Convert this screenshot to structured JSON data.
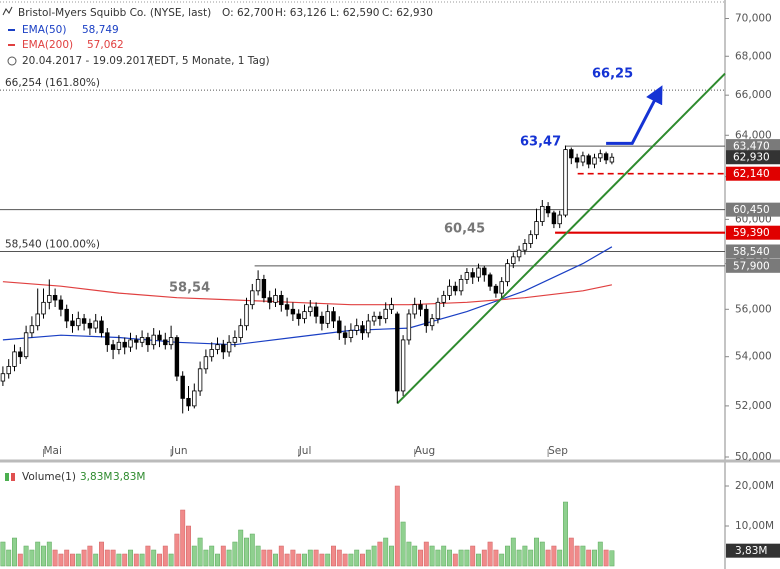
{
  "chart_data": [
    {
      "type": "candlestick",
      "title": "Bristol-Myers Squibb Co. (NYSE, last)",
      "ohlc_summary": [
        "O: 62,700",
        "H: 63,126",
        "L: 62,590",
        "C: 62,930"
      ],
      "period": "20.04.2017 - 19.09.2017",
      "period_note": "(EDT, 5 Monate, 1 Tag)",
      "log_scale": true,
      "grid": false,
      "candle_color": "#000000",
      "xlim": [
        -0.5,
        124.5
      ],
      "xticks": [
        {
          "value": 7,
          "label": "Mai"
        },
        {
          "value": 29,
          "label": "Jun"
        },
        {
          "value": 51,
          "label": "Jul"
        },
        {
          "value": 71,
          "label": "Aug"
        },
        {
          "value": 94,
          "label": "Sep"
        }
      ],
      "ylim": [
        50,
        71
      ],
      "yticks": [
        {
          "value": 50,
          "label": "50,000"
        },
        {
          "value": 52,
          "label": "52,000"
        },
        {
          "value": 54,
          "label": "54,000"
        },
        {
          "value": 56,
          "label": "56,000"
        },
        {
          "value": 58,
          "label": "58,000"
        },
        {
          "value": 60,
          "label": "60,000"
        },
        {
          "value": 62,
          "label": "62,000"
        },
        {
          "value": 64,
          "label": "64,000"
        },
        {
          "value": 66,
          "label": "66,000"
        },
        {
          "value": 68,
          "label": "68,000"
        },
        {
          "value": 70,
          "label": "70,000"
        }
      ],
      "candles": [
        [
          53.0,
          53.6,
          52.8,
          53.3
        ],
        [
          53.3,
          53.9,
          53.1,
          53.6
        ],
        [
          53.6,
          54.5,
          53.4,
          54.2
        ],
        [
          54.2,
          54.4,
          53.7,
          54.0
        ],
        [
          54.0,
          55.3,
          53.9,
          55.0
        ],
        [
          55.0,
          55.7,
          54.8,
          55.3
        ],
        [
          55.3,
          56.9,
          55.1,
          55.8
        ],
        [
          55.8,
          56.9,
          55.6,
          56.3
        ],
        [
          56.3,
          57.3,
          56.0,
          56.6
        ],
        [
          56.6,
          56.9,
          56.1,
          56.4
        ],
        [
          56.4,
          56.6,
          55.7,
          56.0
        ],
        [
          56.0,
          56.2,
          55.2,
          55.5
        ],
        [
          55.5,
          55.8,
          55.0,
          55.3
        ],
        [
          55.3,
          55.9,
          55.1,
          55.6
        ],
        [
          55.6,
          55.8,
          55.1,
          55.4
        ],
        [
          55.4,
          55.6,
          54.9,
          55.2
        ],
        [
          55.2,
          55.8,
          55.0,
          55.5
        ],
        [
          55.5,
          55.7,
          54.8,
          55.0
        ],
        [
          55.0,
          55.2,
          54.2,
          54.5
        ],
        [
          54.5,
          54.7,
          53.9,
          54.3
        ],
        [
          54.3,
          54.9,
          54.1,
          54.6
        ],
        [
          54.6,
          54.8,
          54.1,
          54.4
        ],
        [
          54.4,
          55.0,
          54.2,
          54.7
        ],
        [
          54.7,
          54.9,
          54.3,
          54.6
        ],
        [
          54.6,
          55.1,
          54.4,
          54.8
        ],
        [
          54.8,
          55.0,
          54.2,
          54.5
        ],
        [
          54.5,
          55.2,
          54.3,
          54.9
        ],
        [
          54.9,
          55.1,
          54.4,
          54.7
        ],
        [
          54.7,
          55.0,
          54.3,
          54.5
        ],
        [
          54.5,
          55.3,
          54.3,
          54.8
        ],
        [
          54.8,
          54.9,
          53.0,
          53.2
        ],
        [
          53.2,
          53.4,
          51.7,
          52.3
        ],
        [
          52.3,
          52.8,
          51.8,
          52.0
        ],
        [
          52.0,
          52.9,
          51.9,
          52.6
        ],
        [
          52.6,
          53.8,
          52.4,
          53.5
        ],
        [
          53.5,
          54.3,
          53.3,
          54.0
        ],
        [
          54.0,
          54.6,
          53.8,
          54.3
        ],
        [
          54.3,
          54.8,
          54.1,
          54.5
        ],
        [
          54.5,
          54.7,
          53.9,
          54.2
        ],
        [
          54.2,
          54.9,
          54.0,
          54.6
        ],
        [
          54.6,
          55.1,
          54.4,
          54.8
        ],
        [
          54.8,
          55.6,
          54.6,
          55.3
        ],
        [
          55.3,
          56.5,
          55.1,
          56.2
        ],
        [
          56.2,
          57.1,
          56.0,
          56.8
        ],
        [
          56.8,
          57.7,
          56.6,
          57.3
        ],
        [
          57.3,
          57.5,
          56.3,
          56.5
        ],
        [
          56.5,
          56.8,
          56.0,
          56.3
        ],
        [
          56.3,
          56.9,
          56.1,
          56.6
        ],
        [
          56.6,
          56.8,
          55.9,
          56.2
        ],
        [
          56.2,
          56.5,
          55.7,
          56.0
        ],
        [
          56.0,
          56.3,
          55.5,
          55.8
        ],
        [
          55.8,
          56.0,
          55.3,
          55.6
        ],
        [
          55.6,
          56.2,
          55.4,
          55.9
        ],
        [
          55.9,
          56.4,
          55.7,
          56.1
        ],
        [
          56.1,
          56.3,
          55.4,
          55.7
        ],
        [
          55.7,
          55.9,
          55.1,
          55.4
        ],
        [
          55.4,
          56.2,
          55.2,
          55.9
        ],
        [
          55.9,
          56.1,
          55.2,
          55.5
        ],
        [
          55.5,
          55.7,
          54.7,
          55.0
        ],
        [
          55.0,
          55.3,
          54.5,
          54.8
        ],
        [
          54.8,
          55.4,
          54.6,
          55.1
        ],
        [
          55.1,
          55.6,
          54.9,
          55.3
        ],
        [
          55.3,
          55.5,
          54.7,
          55.0
        ],
        [
          55.0,
          55.8,
          54.8,
          55.5
        ],
        [
          55.5,
          55.9,
          55.3,
          55.7
        ],
        [
          55.7,
          55.9,
          55.3,
          55.6
        ],
        [
          55.6,
          56.3,
          55.4,
          56.0
        ],
        [
          56.0,
          56.5,
          55.8,
          56.2
        ],
        [
          55.8,
          55.9,
          52.1,
          52.6
        ],
        [
          52.6,
          54.9,
          52.4,
          54.7
        ],
        [
          54.7,
          56.0,
          54.5,
          55.8
        ],
        [
          55.8,
          56.5,
          55.6,
          56.2
        ],
        [
          56.2,
          56.4,
          55.7,
          56.0
        ],
        [
          56.0,
          56.2,
          55.0,
          55.3
        ],
        [
          55.3,
          55.8,
          55.1,
          55.6
        ],
        [
          55.6,
          56.5,
          55.4,
          56.3
        ],
        [
          56.3,
          56.8,
          56.1,
          56.6
        ],
        [
          56.6,
          57.3,
          56.4,
          57.0
        ],
        [
          57.0,
          57.2,
          56.6,
          56.8
        ],
        [
          56.8,
          57.5,
          56.6,
          57.3
        ],
        [
          57.3,
          57.8,
          57.1,
          57.6
        ],
        [
          57.6,
          57.8,
          57.1,
          57.4
        ],
        [
          57.4,
          58.0,
          57.2,
          57.8
        ],
        [
          57.8,
          57.9,
          57.2,
          57.5
        ],
        [
          57.5,
          57.6,
          56.8,
          57.0
        ],
        [
          57.0,
          57.1,
          56.5,
          56.7
        ],
        [
          56.7,
          57.4,
          56.5,
          57.2
        ],
        [
          57.2,
          58.2,
          57.0,
          58.0
        ],
        [
          58.0,
          58.5,
          57.8,
          58.3
        ],
        [
          58.3,
          58.8,
          58.1,
          58.6
        ],
        [
          58.6,
          59.1,
          58.4,
          58.9
        ],
        [
          58.9,
          59.5,
          58.7,
          59.3
        ],
        [
          59.3,
          60.5,
          59.1,
          59.9
        ],
        [
          59.9,
          60.9,
          59.7,
          60.6
        ],
        [
          60.6,
          60.8,
          60.1,
          60.3
        ],
        [
          60.3,
          60.4,
          59.6,
          59.8
        ],
        [
          59.8,
          60.4,
          59.6,
          60.2
        ],
        [
          60.2,
          63.5,
          60.1,
          63.3
        ],
        [
          63.3,
          63.4,
          62.6,
          62.9
        ],
        [
          62.9,
          63.1,
          62.4,
          62.7
        ],
        [
          62.7,
          63.2,
          62.5,
          63.0
        ],
        [
          63.0,
          63.1,
          62.4,
          62.6
        ],
        [
          62.6,
          63.1,
          62.4,
          62.9
        ],
        [
          62.9,
          63.3,
          62.7,
          63.1
        ],
        [
          63.1,
          63.2,
          62.6,
          62.8
        ],
        [
          62.7,
          63.126,
          62.59,
          62.93
        ]
      ],
      "overlays": [
        {
          "name": "EMA(50)",
          "value_label": "58,749",
          "color": "#1a3fc4",
          "x": [
            0,
            10,
            20,
            30,
            40,
            50,
            60,
            70,
            80,
            90,
            100,
            105
          ],
          "values": [
            54.7,
            54.9,
            54.8,
            54.6,
            54.5,
            54.8,
            55.1,
            55.2,
            55.9,
            56.8,
            58.0,
            58.749
          ]
        },
        {
          "name": "EMA(200)",
          "value_label": "57,062",
          "color": "#e04040",
          "x": [
            0,
            10,
            20,
            30,
            40,
            50,
            60,
            70,
            80,
            90,
            100,
            105
          ],
          "values": [
            57.2,
            57.0,
            56.7,
            56.5,
            56.4,
            56.3,
            56.2,
            56.2,
            56.3,
            56.5,
            56.8,
            57.062
          ]
        }
      ],
      "levels": [
        {
          "value": 66.254,
          "text": "66,254 (161.80%)",
          "color": "#555555",
          "dash": "dotted"
        },
        {
          "value": 63.47,
          "label": "63,470",
          "color": "#555555",
          "box_color": "#7a7a7a",
          "x_start": 96.9
        },
        {
          "value": 62.14,
          "label": "62,140",
          "color": "#e00000",
          "box_color": "#e00000",
          "dash": "dashed",
          "x_start": 99.1
        },
        {
          "value": 60.45,
          "label": "60,450",
          "color": "#555555",
          "box_color": "#7a7a7a"
        },
        {
          "value": 59.39,
          "label": "59,390",
          "color": "#e00000",
          "box_color": "#e00000",
          "x_start": 95.2
        },
        {
          "value": 58.54,
          "label": "58,540",
          "text": "58,540 (100.00%)",
          "color": "#555555",
          "box_color": "#7a7a7a"
        },
        {
          "value": 57.9,
          "label": "57,900",
          "color": "#555555",
          "box_color": "#7a7a7a",
          "x_start": 43.4
        }
      ],
      "last": {
        "value": 62.93,
        "label": "62,930",
        "color": "#333333"
      },
      "trendline": {
        "color": "#2e8b2e",
        "x": [
          68,
          124.5
        ],
        "values": [
          52.1,
          67.1
        ]
      },
      "arrow": {
        "color": "#1533d4",
        "x": [
          104,
          108.5,
          113
        ],
        "values": [
          63.6,
          63.6,
          66.1
        ]
      },
      "annotations": [
        {
          "text": "66,25",
          "color": "#1533d4"
        },
        {
          "text": "63,47",
          "color": "#1533d4"
        },
        {
          "text": "60,45",
          "color": "#777777"
        },
        {
          "text": "58,54",
          "color": "#777777"
        }
      ]
    },
    {
      "type": "bar",
      "title": "Volume(1)",
      "current_label": "3,83M",
      "up_color": "#8fd08f",
      "down_color": "#f08a8a",
      "xlim": [
        -0.5,
        124.5
      ],
      "ylim": [
        0,
        25.25
      ],
      "yticks": [
        {
          "value": 10,
          "label": "10,00M"
        },
        {
          "value": 20,
          "label": "20,00M"
        }
      ],
      "values": [
        6,
        4,
        7,
        3,
        5,
        4,
        6,
        5,
        6,
        4,
        3,
        4,
        3,
        3,
        4,
        5,
        3,
        6,
        4,
        4,
        3,
        3,
        4,
        3,
        3,
        5,
        4,
        3,
        5,
        3,
        8,
        14,
        10,
        5,
        7,
        4,
        5,
        3,
        5,
        4,
        6,
        9,
        7,
        8,
        5,
        4,
        4,
        3,
        5,
        3,
        4,
        3,
        3,
        4,
        4,
        3,
        3,
        5,
        4,
        3,
        3,
        4,
        3,
        4,
        5,
        6,
        7,
        5,
        20,
        11,
        6,
        5,
        4,
        6,
        5,
        4,
        5,
        4,
        3,
        4,
        4,
        5,
        3,
        4,
        6,
        4,
        3,
        5,
        7,
        4,
        5,
        4,
        7,
        6,
        4,
        5,
        4,
        16,
        7,
        5,
        5,
        4,
        4,
        6,
        4,
        3.83
      ]
    }
  ]
}
